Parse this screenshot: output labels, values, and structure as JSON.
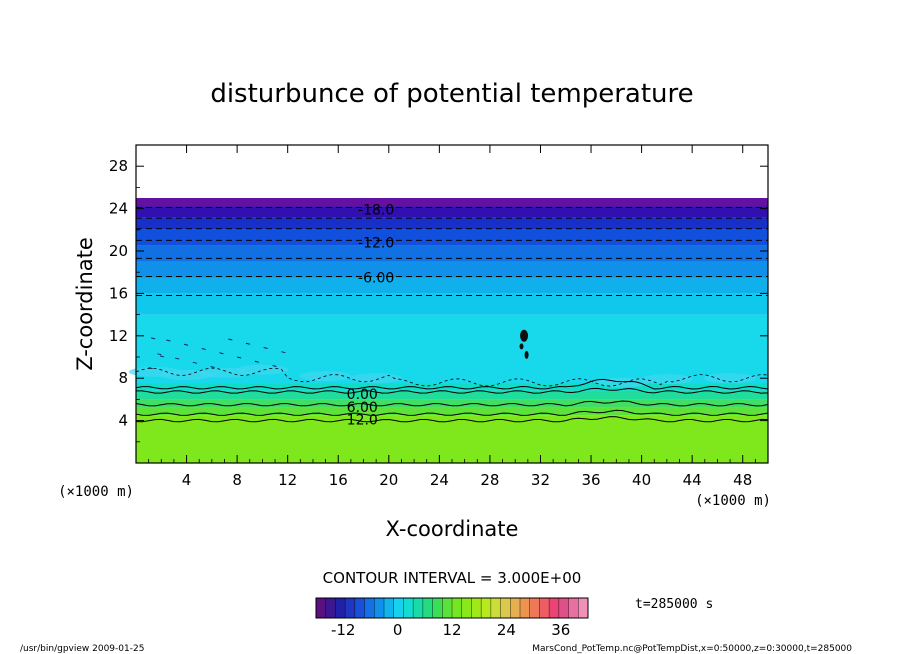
{
  "chart_data": {
    "type": "heatmap",
    "title": "disturbunce of potential temperature",
    "xlabel": "X-coordinate",
    "ylabel": "Z-coordinate",
    "x_unit_left": "(×1000 m)",
    "x_unit_right": "(×1000 m)",
    "xlim": [
      0,
      50
    ],
    "ylim": [
      0,
      30
    ],
    "x_ticks": [
      4,
      8,
      12,
      16,
      20,
      24,
      28,
      32,
      36,
      40,
      44,
      48
    ],
    "y_ticks": [
      4,
      8,
      12,
      16,
      20,
      24,
      28
    ],
    "x_tick_labels": [
      "4",
      "8",
      "12",
      "16",
      "20",
      "24",
      "28",
      "32",
      "36",
      "40",
      "44",
      "48"
    ],
    "y_tick_labels": [
      "4",
      "8",
      "12",
      "16",
      "20",
      "24",
      "28"
    ],
    "layers": [
      {
        "z0": 0,
        "z1": 4.5,
        "color": "#7ee81c"
      },
      {
        "z0": 4.5,
        "z1": 5.2,
        "color": "#5ce23a"
      },
      {
        "z0": 5.2,
        "z1": 6.0,
        "color": "#40de64"
      },
      {
        "z0": 6.0,
        "z1": 6.8,
        "color": "#20dd9c"
      },
      {
        "z0": 6.8,
        "z1": 7.5,
        "color": "#10dcc8"
      },
      {
        "z0": 7.5,
        "z1": 14.0,
        "color": "#18d8ec"
      },
      {
        "z0": 14.0,
        "z1": 16.0,
        "color": "#10c8ec"
      },
      {
        "z0": 16.0,
        "z1": 17.5,
        "color": "#10b0ec"
      },
      {
        "z0": 17.5,
        "z1": 19.0,
        "color": "#1090e8"
      },
      {
        "z0": 19.0,
        "z1": 20.5,
        "color": "#1070e4"
      },
      {
        "z0": 20.5,
        "z1": 22.0,
        "color": "#1050dc"
      },
      {
        "z0": 22.0,
        "z1": 23.2,
        "color": "#1830c8"
      },
      {
        "z0": 23.2,
        "z1": 24.2,
        "color": "#3010b0"
      },
      {
        "z0": 24.2,
        "z1": 25.0,
        "color": "#6410a0"
      }
    ],
    "contour_labels": [
      {
        "text": "-18.0",
        "x": 19.0,
        "z": 24.0
      },
      {
        "text": "-12.0",
        "x": 19.0,
        "z": 20.9
      },
      {
        "text": "-6.00",
        "x": 19.0,
        "z": 17.6
      },
      {
        "text": "0.00",
        "x": 17.9,
        "z": 6.6
      },
      {
        "text": "6.00",
        "x": 17.9,
        "z": 5.4
      },
      {
        "text": "12.0",
        "x": 17.9,
        "z": 4.2
      }
    ],
    "dashed_contours_z": [
      24.1,
      23.1,
      22.1,
      21.0,
      19.3,
      17.6,
      15.8
    ],
    "solid_contours_z": [
      7.1,
      6.7,
      5.5,
      4.6,
      4.0
    ],
    "colorbar": {
      "min": -18,
      "max": 42,
      "tick_values": [
        -12,
        0,
        12,
        24,
        36
      ],
      "tick_labels": [
        "-12",
        "0",
        "12",
        "24",
        "36"
      ],
      "colors": [
        "#5a1080",
        "#3c1890",
        "#2020a8",
        "#2036c0",
        "#1a50d8",
        "#1470e4",
        "#1090ea",
        "#12b4ee",
        "#16d2ee",
        "#14dcd0",
        "#18dca8",
        "#24dc80",
        "#3cde58",
        "#5ce23c",
        "#74e624",
        "#8ae81a",
        "#a0e818",
        "#b8e81e",
        "#ccdc3c",
        "#dcc84c",
        "#e4b050",
        "#ea9450",
        "#ee7858",
        "#ee5c64",
        "#ea4474",
        "#e05088",
        "#e870a0",
        "#f090b8"
      ]
    },
    "contour_interval": "CONTOUR INTERVAL = 3.000E+00",
    "time": "t=285000 s"
  },
  "footer": {
    "left": "/usr/bin/gpview   2009-01-25",
    "right": "MarsCond_PotTemp.nc@PotTempDist,x=0:50000,z=0:30000,t=285000"
  }
}
